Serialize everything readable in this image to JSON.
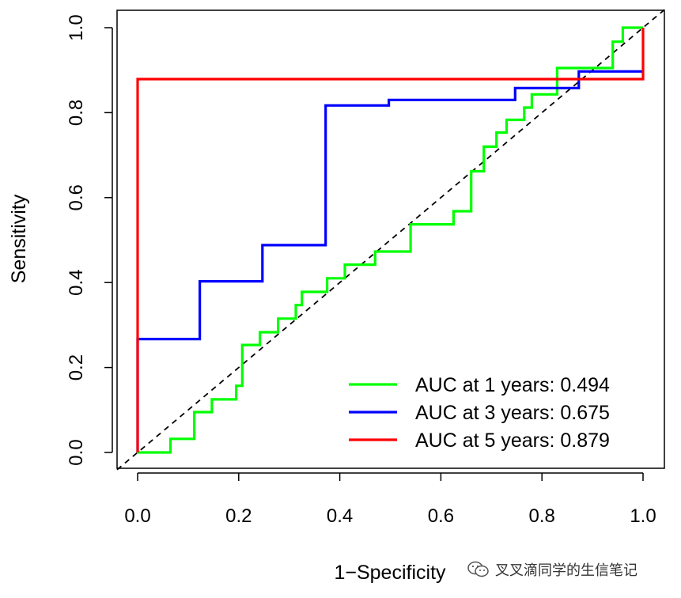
{
  "chart_data": {
    "type": "line",
    "title": "",
    "xlabel": "1−Specificity",
    "ylabel": "Sensitivity",
    "xlim": [
      0,
      1
    ],
    "ylim": [
      0,
      1
    ],
    "x_ticks": [
      "0.0",
      "0.2",
      "0.4",
      "0.6",
      "0.8",
      "1.0"
    ],
    "y_ticks": [
      "0.0",
      "0.2",
      "0.4",
      "0.6",
      "0.8",
      "1.0"
    ],
    "reference_line": {
      "from": [
        0,
        0
      ],
      "to": [
        1,
        1
      ],
      "style": "dashed"
    },
    "legend_position": "bottom-right",
    "series": [
      {
        "name": "AUC at 1 years: 0.494",
        "color": "#00ff00",
        "points": [
          [
            0,
            0
          ],
          [
            0.065,
            0
          ],
          [
            0.065,
            0.032
          ],
          [
            0.112,
            0.032
          ],
          [
            0.112,
            0.095
          ],
          [
            0.147,
            0.095
          ],
          [
            0.147,
            0.125
          ],
          [
            0.195,
            0.125
          ],
          [
            0.195,
            0.157
          ],
          [
            0.207,
            0.157
          ],
          [
            0.207,
            0.253
          ],
          [
            0.242,
            0.253
          ],
          [
            0.242,
            0.283
          ],
          [
            0.278,
            0.283
          ],
          [
            0.278,
            0.315
          ],
          [
            0.313,
            0.315
          ],
          [
            0.313,
            0.347
          ],
          [
            0.325,
            0.347
          ],
          [
            0.325,
            0.378
          ],
          [
            0.375,
            0.378
          ],
          [
            0.375,
            0.41
          ],
          [
            0.41,
            0.41
          ],
          [
            0.41,
            0.442
          ],
          [
            0.47,
            0.442
          ],
          [
            0.47,
            0.473
          ],
          [
            0.54,
            0.473
          ],
          [
            0.54,
            0.537
          ],
          [
            0.625,
            0.537
          ],
          [
            0.625,
            0.568
          ],
          [
            0.66,
            0.568
          ],
          [
            0.66,
            0.662
          ],
          [
            0.685,
            0.662
          ],
          [
            0.685,
            0.72
          ],
          [
            0.71,
            0.72
          ],
          [
            0.71,
            0.753
          ],
          [
            0.73,
            0.753
          ],
          [
            0.73,
            0.783
          ],
          [
            0.765,
            0.783
          ],
          [
            0.765,
            0.812
          ],
          [
            0.78,
            0.812
          ],
          [
            0.78,
            0.843
          ],
          [
            0.83,
            0.843
          ],
          [
            0.83,
            0.905
          ],
          [
            0.94,
            0.905
          ],
          [
            0.94,
            0.967
          ],
          [
            0.96,
            0.967
          ],
          [
            0.96,
            1.0
          ],
          [
            1.0,
            1.0
          ]
        ]
      },
      {
        "name": "AUC at 3 years: 0.675",
        "color": "#0000ff",
        "points": [
          [
            0,
            0
          ],
          [
            0,
            0.267
          ],
          [
            0.123,
            0.267
          ],
          [
            0.123,
            0.403
          ],
          [
            0.247,
            0.403
          ],
          [
            0.247,
            0.488
          ],
          [
            0.372,
            0.488
          ],
          [
            0.372,
            0.817
          ],
          [
            0.497,
            0.817
          ],
          [
            0.497,
            0.83
          ],
          [
            0.747,
            0.83
          ],
          [
            0.747,
            0.858
          ],
          [
            0.873,
            0.858
          ],
          [
            0.873,
            0.897
          ],
          [
            1.0,
            0.897
          ]
        ]
      },
      {
        "name": "AUC at 5 years: 0.879",
        "color": "#ff0000",
        "points": [
          [
            0,
            0
          ],
          [
            0,
            0.879
          ],
          [
            1.0,
            0.879
          ],
          [
            1.0,
            1.0
          ]
        ]
      }
    ]
  },
  "watermark": {
    "text": "叉叉滴同学的生信笔记",
    "icon": "wechat-icon"
  }
}
